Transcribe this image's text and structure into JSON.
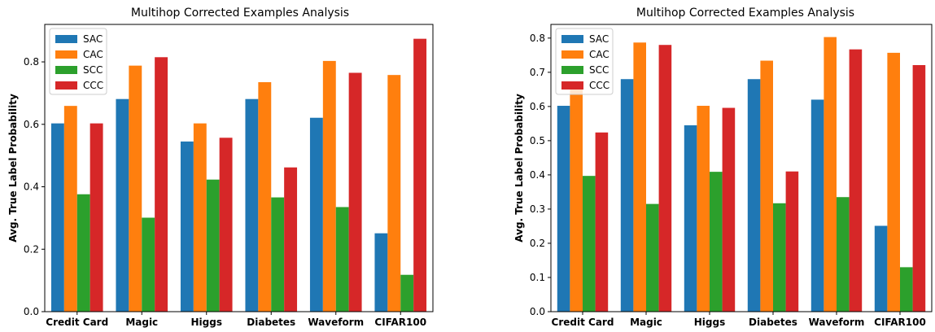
{
  "chart_data": [
    {
      "type": "bar",
      "title": "Multihop Corrected Examples Analysis",
      "xlabel": "",
      "ylabel": "Avg. True Label Probability",
      "categories": [
        "Credit Card",
        "Magic",
        "Higgs",
        "Diabetes",
        "Waveform",
        "CIFAR100"
      ],
      "ylim": [
        0,
        0.92
      ],
      "yticks": [
        "0.0",
        "0.2",
        "0.4",
        "0.6",
        "0.8"
      ],
      "legend_position": "top-left",
      "series": [
        {
          "name": "SAC",
          "color": "#1f77b4",
          "values": [
            0.603,
            0.681,
            0.545,
            0.681,
            0.621,
            0.251
          ]
        },
        {
          "name": "CAC",
          "color": "#ff7f0e",
          "values": [
            0.659,
            0.788,
            0.603,
            0.735,
            0.803,
            0.758
          ]
        },
        {
          "name": "SCC",
          "color": "#2ca02c",
          "values": [
            0.376,
            0.301,
            0.423,
            0.366,
            0.335,
            0.118
          ]
        },
        {
          "name": "CCC",
          "color": "#d62728",
          "values": [
            0.603,
            0.815,
            0.557,
            0.462,
            0.765,
            0.874
          ]
        }
      ]
    },
    {
      "type": "bar",
      "title": "Multihop Corrected Examples Analysis",
      "xlabel": "",
      "ylabel": "Avg. True Label Probability",
      "categories": [
        "Credit Card",
        "Magic",
        "Higgs",
        "Diabetes",
        "Waveform",
        "CIFAR100"
      ],
      "ylim": [
        0,
        0.84
      ],
      "yticks": [
        "0.0",
        "0.1",
        "0.2",
        "0.3",
        "0.4",
        "0.5",
        "0.6",
        "0.7",
        "0.8"
      ],
      "legend_position": "top-left",
      "series": [
        {
          "name": "SAC",
          "color": "#1f77b4",
          "values": [
            0.602,
            0.68,
            0.545,
            0.68,
            0.62,
            0.251
          ]
        },
        {
          "name": "CAC",
          "color": "#ff7f0e",
          "values": [
            0.661,
            0.787,
            0.602,
            0.734,
            0.803,
            0.757
          ]
        },
        {
          "name": "SCC",
          "color": "#2ca02c",
          "values": [
            0.397,
            0.315,
            0.409,
            0.317,
            0.335,
            0.13
          ]
        },
        {
          "name": "CCC",
          "color": "#d62728",
          "values": [
            0.524,
            0.78,
            0.596,
            0.41,
            0.767,
            0.721
          ]
        }
      ]
    }
  ]
}
